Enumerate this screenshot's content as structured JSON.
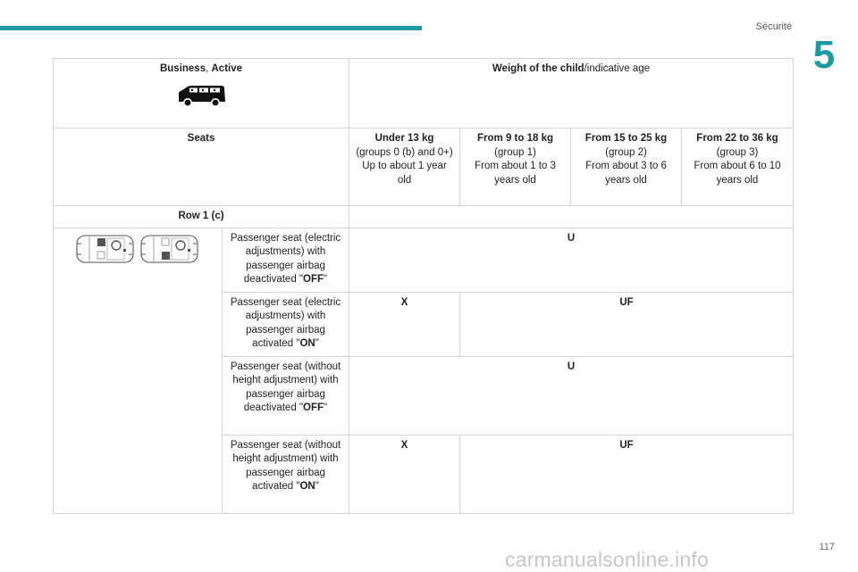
{
  "header": {
    "section": "Sécurité",
    "chapter": "5",
    "page": "117"
  },
  "watermark": "carmanualsonline.info",
  "table": {
    "version_bold1": "Business",
    "version_sep": ", ",
    "version_bold2": "Active",
    "weight_bold": "Weight of the child",
    "weight_rest": "/indicative age",
    "seats_label": "Seats",
    "groups": [
      {
        "title": "Under 13 kg",
        "lines": [
          "(groups 0 (b) and 0+)",
          "Up to about 1 year old"
        ]
      },
      {
        "title": "From 9 to 18 kg",
        "lines": [
          "(group 1)",
          "From about 1 to 3 years old"
        ]
      },
      {
        "title": "From 15 to 25 kg",
        "lines": [
          "(group 2)",
          "From about 3 to 6 years old"
        ]
      },
      {
        "title": "From 22 to 36 kg",
        "lines": [
          "(group 3)",
          "From about 6 to 10 years old"
        ]
      }
    ],
    "row_label": "Row 1 (c)",
    "rows": [
      {
        "desc": "Passenger seat (electric adjustments) with passenger airbag deactivated \"",
        "state": "OFF",
        "quote": "\"",
        "all": "U"
      },
      {
        "desc": "Passenger seat (electric adjustments) with passenger airbag activated \"",
        "state": "ON",
        "quote": "\"",
        "first": "X",
        "rest": "UF"
      },
      {
        "desc": "Passenger seat (without height adjustment) with passenger airbag deactivated \"",
        "state": "OFF",
        "quote": "\"",
        "all": "U"
      },
      {
        "desc": "Passenger seat (without height adjustment) with passenger airbag activated \"",
        "state": "ON",
        "quote": "\"",
        "first": "X",
        "rest": "UF"
      }
    ]
  },
  "colors": {
    "accent": "#1c9a9f",
    "border": "#d4d4d4"
  },
  "icons": [
    "van-silhouette-icon",
    "car-top-view-icon"
  ]
}
